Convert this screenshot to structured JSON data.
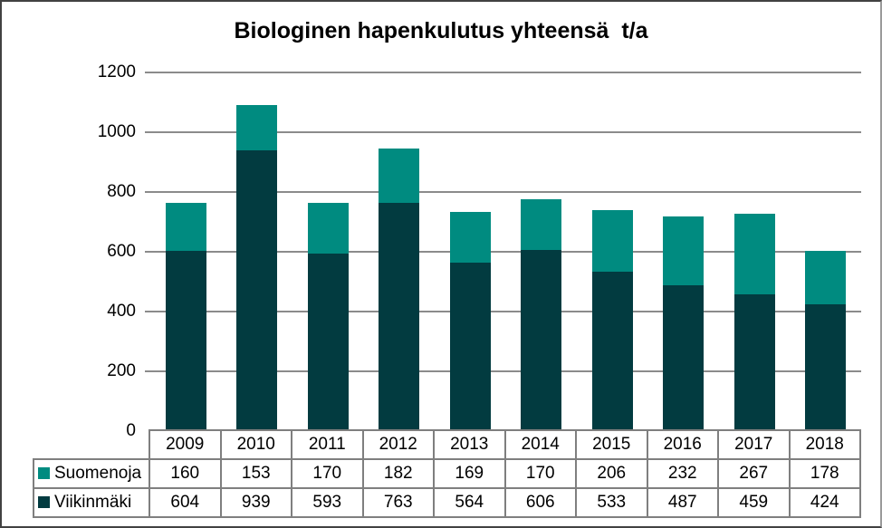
{
  "chart": {
    "title": "Biologinen hapenkulutus yhteensä  t/a"
  },
  "chart_data": {
    "type": "bar",
    "stacked": true,
    "title": "Biologinen hapenkulutus yhteensä  t/a",
    "categories": [
      "2009",
      "2010",
      "2011",
      "2012",
      "2013",
      "2014",
      "2015",
      "2016",
      "2017",
      "2018"
    ],
    "series": [
      {
        "name": "Suomenoja",
        "key": "suomenoja",
        "color": "#008B80",
        "values": [
          160,
          153,
          170,
          182,
          169,
          170,
          206,
          232,
          267,
          178
        ]
      },
      {
        "name": "Viikinmäki",
        "key": "viikinmaki",
        "color": "#023B40",
        "values": [
          604,
          939,
          593,
          763,
          564,
          606,
          533,
          487,
          459,
          424
        ]
      }
    ],
    "stack_order_bottom_to_top": [
      "viikinmaki",
      "suomenoja"
    ],
    "xlabel": "",
    "ylabel": "",
    "ylim": [
      0,
      1200
    ],
    "yticks": [
      0,
      200,
      400,
      600,
      800,
      1000,
      1200
    ],
    "grid": "horizontal",
    "gridline_color": "#8b8b8b",
    "table_border_color": "#7f7f7f",
    "legend_position": "table-rows-left"
  }
}
